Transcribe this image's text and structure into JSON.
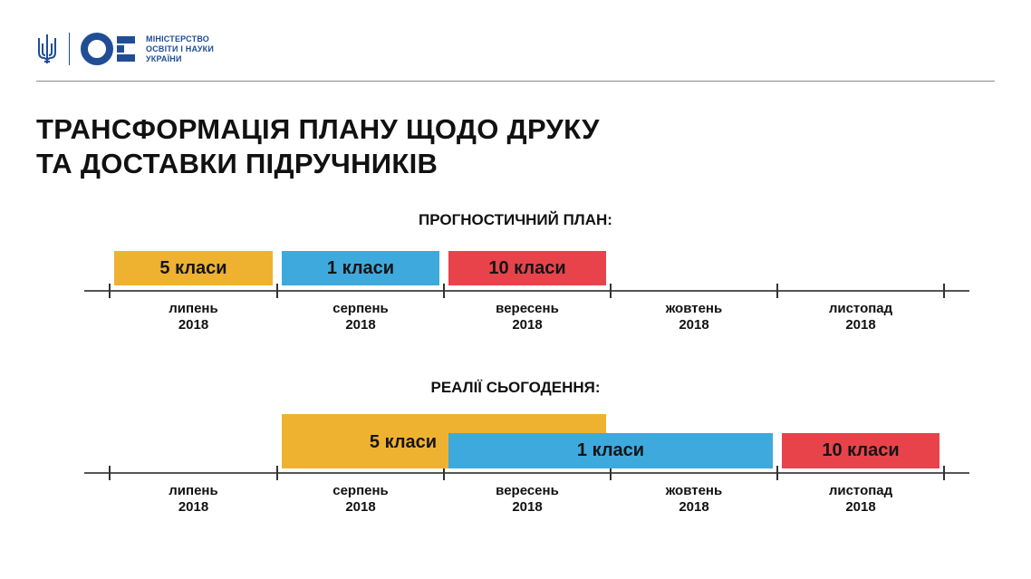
{
  "header": {
    "ministry_lines": [
      "МІНІСТЕРСТВО",
      "ОСВІТИ І НАУКИ",
      "УКРАЇНИ"
    ]
  },
  "title": {
    "line1": "ТРАНСФОРМАЦІЯ ПЛАНУ ЩОДО ДРУКУ",
    "line2": "ТА ДОСТАВКИ ПІДРУЧНИКІВ"
  },
  "colors": {
    "orange": "#efb230",
    "blue": "#3ea9dd",
    "red": "#e8434b",
    "brand_blue": "#1f4e96"
  },
  "months": [
    {
      "name": "липень",
      "year": "2018"
    },
    {
      "name": "серпень",
      "year": "2018"
    },
    {
      "name": "вересень",
      "year": "2018"
    },
    {
      "name": "жовтень",
      "year": "2018"
    },
    {
      "name": "листопад",
      "year": "2018"
    }
  ],
  "forecast": {
    "heading": "ПРОГНОСТИЧНИЙ ПЛАН:",
    "bars": [
      {
        "label": "5 класи",
        "color": "orange",
        "start_month": "липень 2018",
        "end_month": "липень 2018"
      },
      {
        "label": "1 класи",
        "color": "blue",
        "start_month": "серпень 2018",
        "end_month": "серпень 2018"
      },
      {
        "label": "10 класи",
        "color": "red",
        "start_month": "вересень 2018",
        "end_month": "вересень 2018"
      }
    ]
  },
  "reality": {
    "heading": "РЕАЛІЇ СЬОГОДЕННЯ:",
    "bars": [
      {
        "label": "5 класи",
        "color": "orange",
        "start_month": "серпень 2018",
        "end_month": "вересень 2018"
      },
      {
        "label": "1 класи",
        "color": "blue",
        "start_month": "вересень 2018",
        "end_month": "жовтень 2018"
      },
      {
        "label": "10 класи",
        "color": "red",
        "start_month": "листопад 2018",
        "end_month": "листопад 2018"
      }
    ]
  }
}
